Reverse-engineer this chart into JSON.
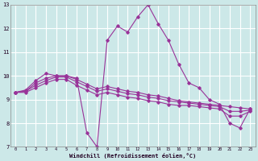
{
  "xlabel": "Windchill (Refroidissement éolien,°C)",
  "bg_color": "#cce8e8",
  "grid_color": "#ffffff",
  "line_color": "#993399",
  "xlim": [
    -0.5,
    23.5
  ],
  "ylim": [
    7,
    13
  ],
  "xticks": [
    0,
    1,
    2,
    3,
    4,
    5,
    6,
    7,
    8,
    9,
    10,
    11,
    12,
    13,
    14,
    15,
    16,
    17,
    18,
    19,
    20,
    21,
    22,
    23
  ],
  "yticks": [
    7,
    8,
    9,
    10,
    11,
    12,
    13
  ],
  "line1_x": [
    0,
    1,
    2,
    3,
    4,
    5,
    6,
    7,
    8,
    9,
    10,
    11,
    12,
    13,
    14,
    15,
    16,
    17,
    18,
    19,
    20,
    21,
    22,
    23
  ],
  "line1_y": [
    9.3,
    9.4,
    9.8,
    10.1,
    10.0,
    10.0,
    9.9,
    7.6,
    7.0,
    11.5,
    12.1,
    11.85,
    12.5,
    13.0,
    12.2,
    11.5,
    10.5,
    9.7,
    9.5,
    9.0,
    8.8,
    8.0,
    7.8,
    8.6
  ],
  "line2_x": [
    0,
    1,
    2,
    3,
    4,
    5,
    6,
    7,
    8,
    9,
    10,
    11,
    12,
    13,
    14,
    15,
    16,
    17,
    18,
    19,
    20,
    21,
    22,
    23
  ],
  "line2_y": [
    9.3,
    9.35,
    9.7,
    9.9,
    10.0,
    10.0,
    9.85,
    9.65,
    9.45,
    9.55,
    9.45,
    9.35,
    9.3,
    9.2,
    9.15,
    9.05,
    8.95,
    8.9,
    8.85,
    8.8,
    8.75,
    8.7,
    8.65,
    8.6
  ],
  "line3_x": [
    0,
    1,
    2,
    3,
    4,
    5,
    6,
    7,
    8,
    9,
    10,
    11,
    12,
    13,
    14,
    15,
    16,
    17,
    18,
    19,
    20,
    21,
    22,
    23
  ],
  "line3_y": [
    9.3,
    9.35,
    9.6,
    9.8,
    9.95,
    9.95,
    9.75,
    9.55,
    9.35,
    9.45,
    9.35,
    9.25,
    9.2,
    9.1,
    9.05,
    8.95,
    8.9,
    8.85,
    8.8,
    8.75,
    8.7,
    8.5,
    8.5,
    8.55
  ],
  "line4_x": [
    0,
    1,
    2,
    3,
    4,
    5,
    6,
    7,
    8,
    9,
    10,
    11,
    12,
    13,
    14,
    15,
    16,
    17,
    18,
    19,
    20,
    21,
    22,
    23
  ],
  "line4_y": [
    9.3,
    9.3,
    9.5,
    9.7,
    9.85,
    9.85,
    9.6,
    9.4,
    9.2,
    9.3,
    9.2,
    9.1,
    9.05,
    8.95,
    8.9,
    8.8,
    8.75,
    8.75,
    8.7,
    8.65,
    8.6,
    8.3,
    8.3,
    8.5
  ]
}
